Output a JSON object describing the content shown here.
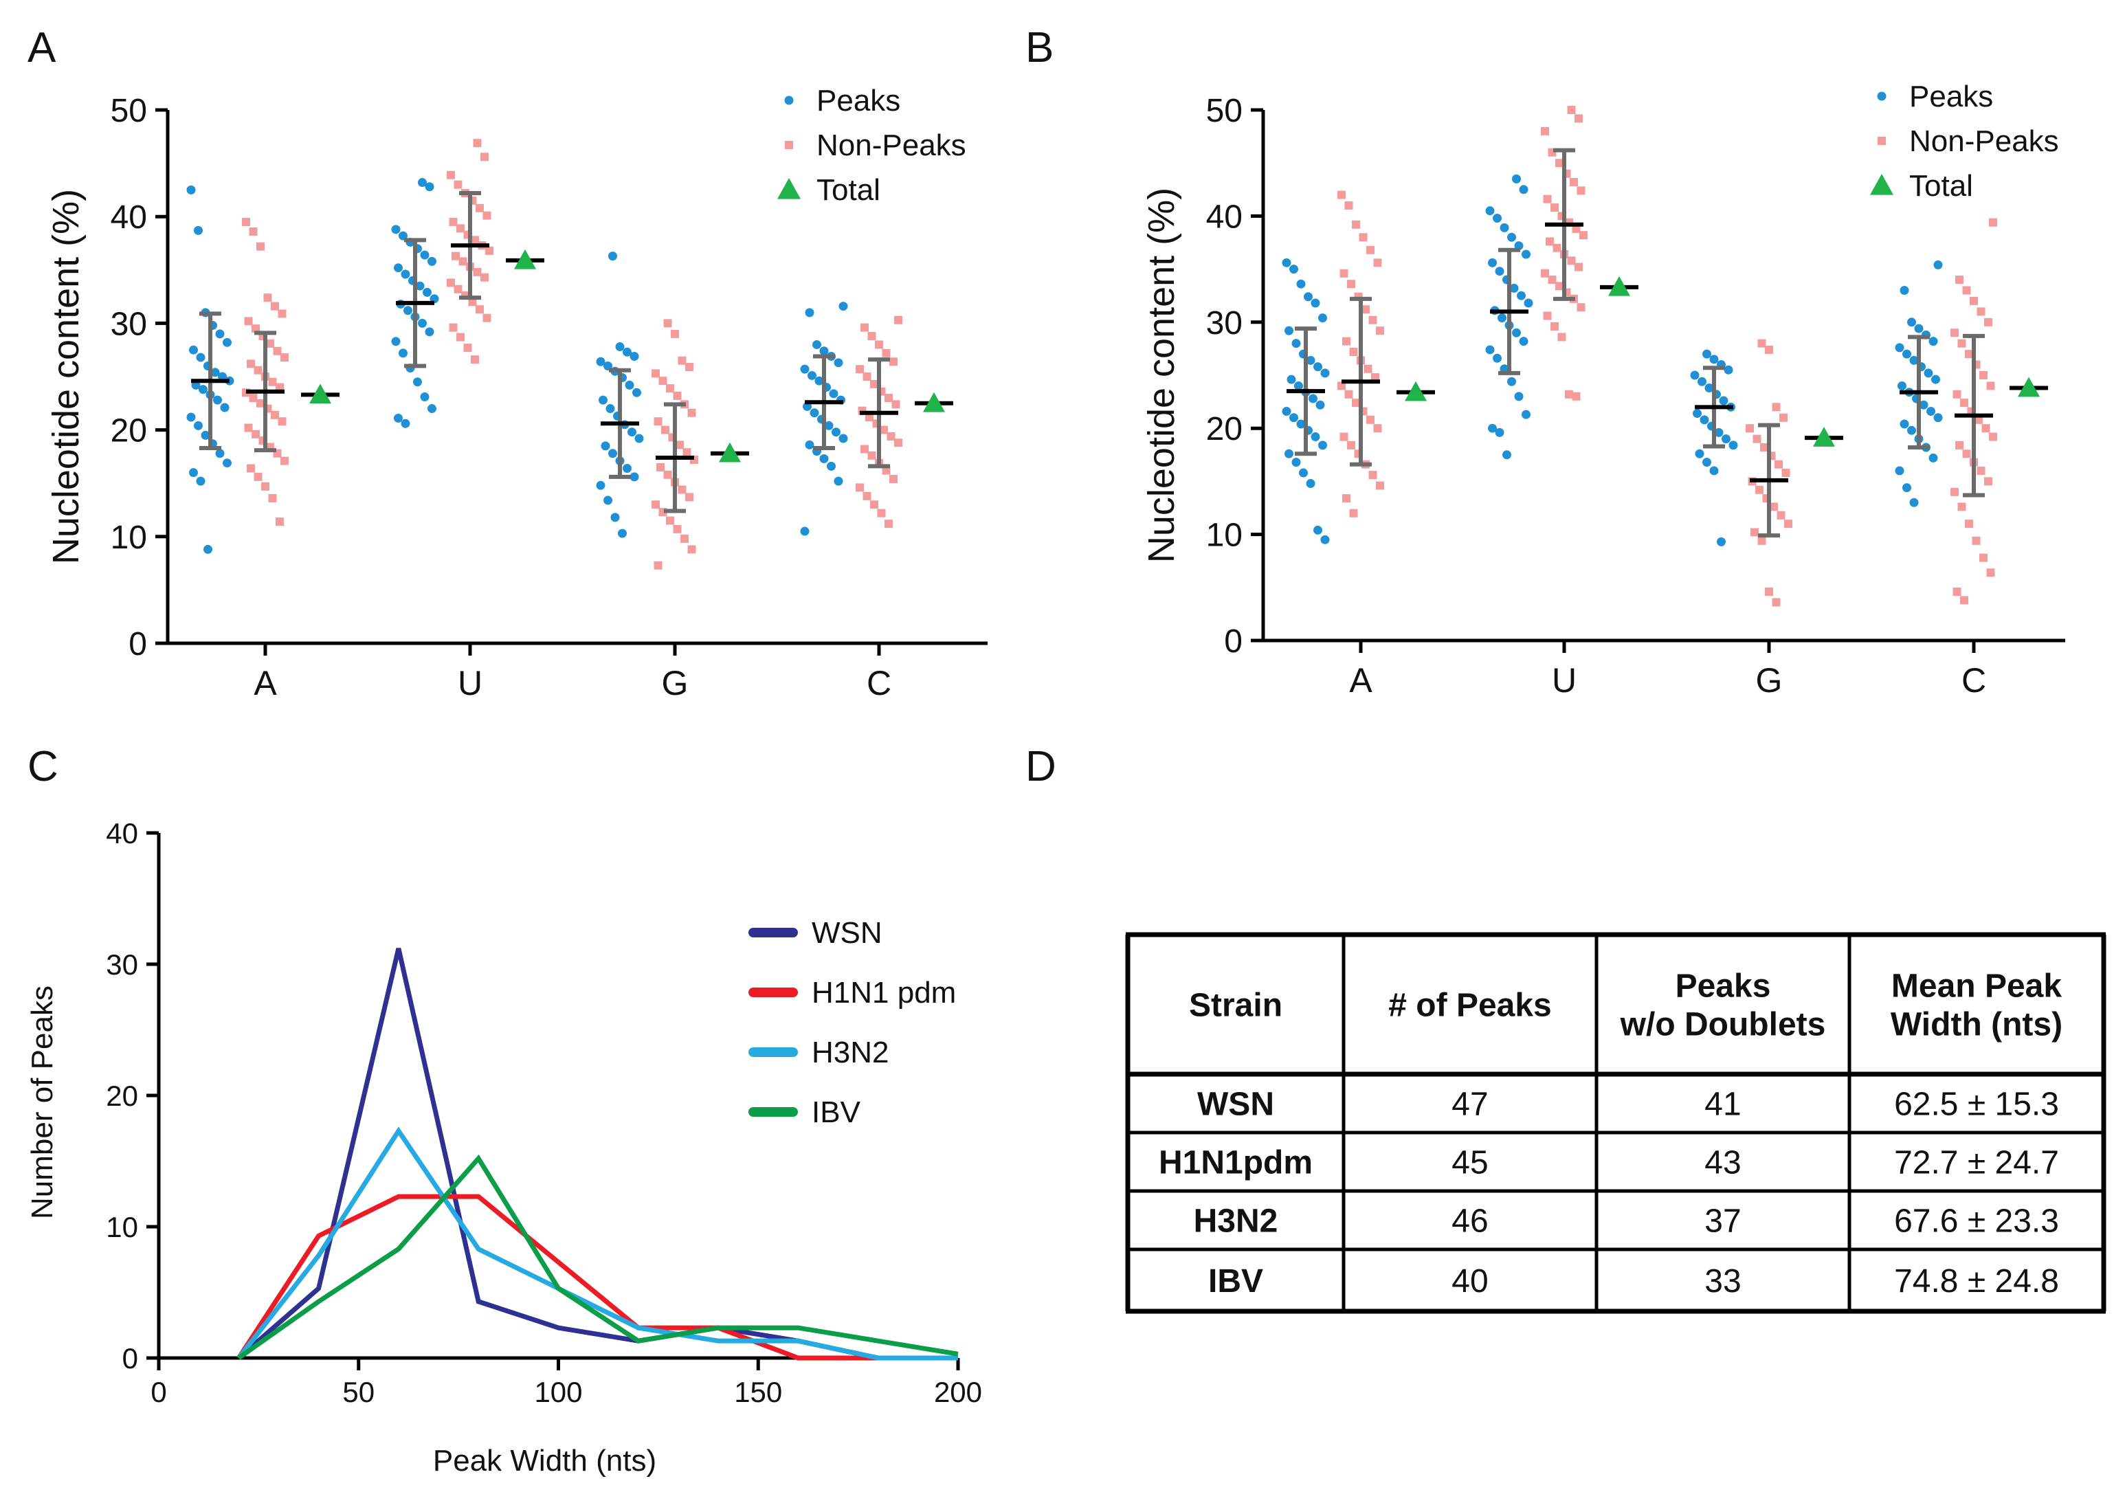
{
  "panels": {
    "A": {
      "letter": "A"
    },
    "B": {
      "letter": "B"
    },
    "C": {
      "letter": "C"
    },
    "D": {
      "letter": "D"
    }
  },
  "colors": {
    "peaks": "#1f8fd6",
    "nonpeaks": "#f49a9a",
    "total": "#1fb34a",
    "errorbar": "#6b6b6b",
    "mean": "#000000",
    "WSN": "#2e3192",
    "H1N1 pdm": "#ed1c24",
    "H3N2": "#27aae1",
    "IBV": "#0c9d48"
  },
  "chart_data": [
    {
      "panel": "A",
      "type": "scatter",
      "title": "",
      "xlabel": "",
      "ylabel": "Nucleotide content (%)",
      "ylim": [
        0,
        50
      ],
      "yticks": [
        "0",
        "10",
        "20",
        "30",
        "40",
        "50"
      ],
      "categories": [
        "A",
        "U",
        "G",
        "C"
      ],
      "legend": {
        "position": "top-right",
        "entries": [
          "Peaks",
          "Non-Peaks",
          "Total"
        ]
      },
      "series": [
        {
          "name": "Peaks",
          "marker": "circle",
          "mean": [
            24.6,
            31.9,
            20.6,
            22.6
          ],
          "sd": [
            6.3,
            5.9,
            5.0,
            4.3
          ],
          "points": [
            [
              42.5,
              38.7,
              31.0,
              29.8,
              29.0,
              28.2,
              27.5,
              26.8,
              26.0,
              25.4,
              25.0,
              24.6,
              24.2,
              23.8,
              23.3,
              22.8,
              22.1,
              21.2,
              20.4,
              19.5,
              18.7,
              17.8,
              16.9,
              16.0,
              15.2,
              8.8
            ],
            [
              43.2,
              42.8,
              38.8,
              38.2,
              37.6,
              37.0,
              36.4,
              35.8,
              35.2,
              34.6,
              34.0,
              33.5,
              32.9,
              32.3,
              31.8,
              31.2,
              30.6,
              30.0,
              29.2,
              28.3,
              27.2,
              25.8,
              24.5,
              23.1,
              22.0,
              21.1,
              20.6
            ],
            [
              36.3,
              27.8,
              27.3,
              26.9,
              26.4,
              26.0,
              25.5,
              24.9,
              24.2,
              23.5,
              22.8,
              22.0,
              21.3,
              20.5,
              19.8,
              19.2,
              18.5,
              17.8,
              17.1,
              16.4,
              15.6,
              14.8,
              13.4,
              11.8,
              10.3
            ],
            [
              31.6,
              31.0,
              28.0,
              27.4,
              26.9,
              26.3,
              25.7,
              25.1,
              24.6,
              24.0,
              23.4,
              22.8,
              22.2,
              21.6,
              21.0,
              20.4,
              19.8,
              19.2,
              18.6,
              18.0,
              17.3,
              16.6,
              15.2,
              10.5
            ]
          ]
        },
        {
          "name": "Non-Peaks",
          "marker": "square",
          "mean": [
            23.6,
            37.3,
            17.4,
            21.6
          ],
          "sd": [
            5.5,
            4.9,
            5.0,
            5.0
          ],
          "points": [
            [
              39.5,
              38.6,
              37.2,
              32.4,
              31.6,
              30.9,
              30.2,
              29.5,
              28.8,
              28.1,
              27.4,
              26.8,
              26.2,
              25.6,
              25.0,
              24.5,
              24.0,
              23.5,
              23.0,
              22.5,
              22.0,
              21.4,
              20.8,
              20.2,
              19.6,
              19.0,
              18.4,
              17.8,
              17.1,
              16.4,
              15.6,
              14.7,
              13.6,
              11.4
            ],
            [
              46.9,
              45.6,
              43.9,
              43.0,
              42.2,
              41.5,
              40.8,
              40.1,
              39.5,
              38.9,
              38.3,
              37.8,
              37.3,
              36.8,
              36.3,
              35.8,
              35.3,
              34.8,
              34.3,
              33.8,
              33.2,
              32.6,
              32.0,
              31.3,
              30.5,
              29.6,
              28.7,
              27.7,
              26.6
            ],
            [
              30.0,
              29.0,
              26.5,
              25.9,
              25.3,
              24.6,
              23.9,
              23.2,
              22.4,
              21.6,
              20.8,
              20.0,
              19.3,
              18.6,
              17.9,
              17.2,
              16.5,
              15.8,
              15.1,
              14.4,
              13.7,
              13.0,
              12.3,
              11.5,
              10.7,
              9.8,
              8.8,
              7.3
            ],
            [
              30.3,
              29.6,
              28.8,
              28.0,
              27.2,
              26.4,
              25.7,
              25.0,
              24.3,
              23.6,
              23.0,
              22.4,
              21.8,
              21.2,
              20.6,
              20.0,
              19.4,
              18.8,
              18.2,
              17.6,
              16.9,
              16.2,
              15.4,
              14.6,
              13.8,
              13.0,
              12.2,
              11.2
            ]
          ]
        },
        {
          "name": "Total",
          "marker": "triangle",
          "values": [
            23.3,
            35.9,
            17.8,
            22.5
          ]
        }
      ]
    },
    {
      "panel": "B",
      "type": "scatter",
      "title": "",
      "xlabel": "",
      "ylabel": "Nucleotide content (%)",
      "ylim": [
        0,
        50
      ],
      "yticks": [
        "0",
        "10",
        "20",
        "30",
        "40",
        "50"
      ],
      "categories": [
        "A",
        "U",
        "G",
        "C"
      ],
      "legend": {
        "position": "top-right",
        "entries": [
          "Peaks",
          "Non-Peaks",
          "Total"
        ]
      },
      "series": [
        {
          "name": "Peaks",
          "marker": "circle",
          "mean": [
            23.5,
            31.0,
            22.0,
            23.4
          ],
          "sd": [
            5.9,
            5.8,
            3.7,
            5.2
          ],
          "points": [
            [
              35.6,
              35.0,
              33.6,
              32.4,
              31.8,
              30.4,
              29.2,
              28.0,
              27.0,
              26.4,
              25.8,
              25.2,
              24.6,
              24.0,
              23.4,
              22.8,
              22.2,
              21.6,
              21.0,
              20.4,
              19.8,
              19.2,
              18.4,
              17.6,
              16.8,
              15.8,
              14.8,
              10.4,
              9.5
            ],
            [
              43.5,
              42.5,
              40.5,
              39.8,
              38.9,
              38.0,
              37.2,
              36.4,
              35.6,
              34.8,
              34.0,
              33.2,
              32.5,
              31.8,
              31.1,
              30.4,
              29.7,
              29.0,
              28.2,
              27.4,
              26.6,
              25.6,
              24.4,
              23.0,
              21.3,
              20.0,
              19.6,
              17.5
            ],
            [
              27.0,
              26.5,
              26.0,
              25.5,
              25.0,
              24.4,
              23.8,
              23.2,
              22.6,
              22.0,
              21.4,
              20.8,
              20.2,
              19.6,
              19.0,
              18.4,
              17.6,
              16.8,
              16.0,
              9.3
            ],
            [
              35.4,
              33.0,
              30.0,
              29.4,
              28.8,
              28.2,
              27.6,
              27.0,
              26.4,
              25.8,
              25.2,
              24.6,
              24.0,
              23.4,
              22.8,
              22.2,
              21.6,
              21.0,
              20.4,
              19.8,
              19.0,
              18.2,
              17.2,
              16.0,
              14.4,
              13.0
            ]
          ]
        },
        {
          "name": "Non-Peaks",
          "marker": "square",
          "mean": [
            24.4,
            39.2,
            15.1,
            21.2
          ],
          "sd": [
            7.8,
            7.0,
            5.2,
            7.5
          ],
          "points": [
            [
              42.0,
              41.0,
              39.2,
              38.0,
              36.8,
              35.6,
              34.6,
              33.6,
              32.4,
              31.2,
              30.2,
              29.2,
              28.2,
              27.2,
              26.4,
              25.6,
              24.8,
              24.0,
              23.2,
              22.4,
              21.6,
              20.8,
              20.0,
              19.2,
              18.4,
              17.6,
              16.6,
              15.6,
              14.6,
              13.4,
              12.0
            ],
            [
              50.0,
              49.2,
              48.0,
              46.0,
              45.0,
              44.0,
              43.2,
              42.4,
              41.6,
              40.8,
              40.0,
              39.4,
              38.8,
              38.2,
              37.6,
              37.0,
              36.4,
              35.8,
              35.2,
              34.6,
              34.0,
              33.4,
              32.8,
              32.2,
              31.4,
              30.6,
              29.6,
              28.6,
              23.2,
              23.0
            ],
            [
              28.0,
              27.4,
              22.0,
              21.0,
              20.0,
              19.0,
              18.2,
              17.4,
              16.6,
              15.8,
              15.0,
              14.2,
              13.4,
              12.6,
              11.8,
              11.0,
              10.2,
              9.4,
              4.6,
              3.6
            ],
            [
              39.4,
              34.0,
              33.0,
              32.0,
              31.0,
              30.0,
              29.0,
              28.0,
              27.0,
              26.0,
              25.0,
              24.0,
              23.2,
              22.4,
              21.6,
              20.8,
              20.0,
              19.2,
              18.4,
              17.6,
              16.8,
              16.0,
              15.0,
              14.0,
              12.6,
              11.0,
              9.4,
              7.8,
              6.4,
              4.6,
              3.8
            ]
          ]
        },
        {
          "name": "Total",
          "marker": "triangle",
          "values": [
            23.4,
            33.3,
            19.1,
            23.8
          ]
        }
      ]
    },
    {
      "panel": "C",
      "type": "line",
      "title": "",
      "xlabel": "Peak Width (nts)",
      "ylabel": "Number of Peaks",
      "xlim": [
        0,
        200
      ],
      "ylim": [
        0,
        40
      ],
      "xticks": [
        "0",
        "50",
        "100",
        "150",
        "200"
      ],
      "yticks": [
        "0",
        "10",
        "20",
        "30",
        "40"
      ],
      "legend": {
        "position": "right",
        "entries": [
          "WSN",
          "H1N1 pdm",
          "H3N2",
          "IBV"
        ]
      },
      "x": [
        20,
        40,
        60,
        80,
        100,
        120,
        140,
        160,
        180,
        200
      ],
      "series": [
        {
          "name": "WSN",
          "values": [
            0,
            5.3,
            31.2,
            4.3,
            2.3,
            1.3,
            2.3,
            1.3,
            0,
            0
          ]
        },
        {
          "name": "H1N1 pdm",
          "values": [
            0,
            9.3,
            12.3,
            12.3,
            7.3,
            2.3,
            2.3,
            0,
            0,
            0
          ]
        },
        {
          "name": "H3N2",
          "values": [
            0,
            7.8,
            17.3,
            8.3,
            5.3,
            2.3,
            1.3,
            1.3,
            0,
            0
          ]
        },
        {
          "name": "IBV",
          "values": [
            0,
            4.3,
            8.3,
            15.2,
            5.3,
            1.3,
            2.3,
            2.3,
            1.3,
            0.3
          ]
        }
      ]
    },
    {
      "panel": "D",
      "type": "table",
      "columns": [
        "Strain",
        "# of Peaks",
        "Peaks w/o Doublets",
        "Mean Peak Width (nts)"
      ],
      "column_lines": [
        [
          "Strain"
        ],
        [
          "# of Peaks"
        ],
        [
          "Peaks",
          "w/o Doublets"
        ],
        [
          "Mean Peak",
          "Width (nts)"
        ]
      ],
      "rows": [
        [
          "WSN",
          "47",
          "41",
          "62.5 ± 15.3"
        ],
        [
          "H1N1pdm",
          "45",
          "43",
          "72.7 ± 24.7"
        ],
        [
          "H3N2",
          "46",
          "37",
          "67.6 ± 23.3"
        ],
        [
          "IBV",
          "40",
          "33",
          "74.8 ± 24.8"
        ]
      ]
    }
  ]
}
